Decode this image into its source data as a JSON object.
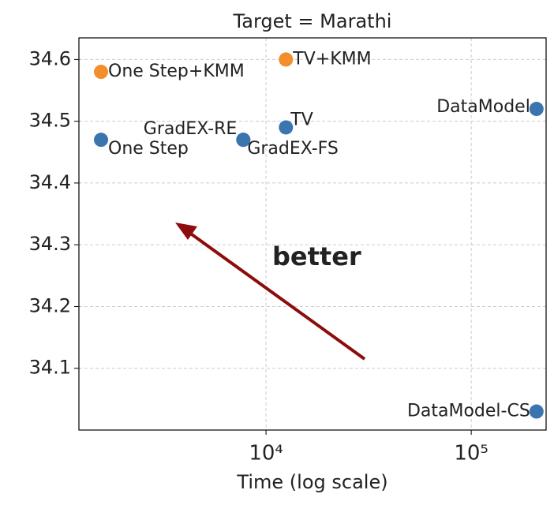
{
  "chart_data": {
    "type": "scatter",
    "title": "Target = Marathi",
    "xlabel": "Time (log scale)",
    "xlog": true,
    "grid": true,
    "labels": [
      "One Step+KMM",
      "One Step",
      "GradEX-RE",
      "GradEX-FS",
      "TV",
      "TV+KMM",
      "DataModel",
      "DataModel-CS"
    ],
    "x": [
      1570,
      1570,
      7750,
      7750,
      12500,
      12500,
      208000,
      208000
    ],
    "values": [
      34.58,
      34.47,
      34.47,
      34.47,
      34.49,
      34.6,
      34.52,
      34.03
    ],
    "colors": [
      "#f28e2b",
      "#3a75b0",
      "#3a75b0",
      "#3a75b0",
      "#3a75b0",
      "#f28e2b",
      "#3a75b0",
      "#3a75b0"
    ],
    "xlim": [
      1225,
      231700
    ],
    "ylim": [
      34.0,
      34.635
    ],
    "xticks": [
      {
        "value": 10000,
        "label": "10⁴"
      },
      {
        "value": 100000,
        "label": "10⁵"
      }
    ],
    "yticks": [
      34.1,
      34.2,
      34.3,
      34.4,
      34.5,
      34.6
    ],
    "annotation": "better",
    "annotation_color": "#9b1010"
  }
}
